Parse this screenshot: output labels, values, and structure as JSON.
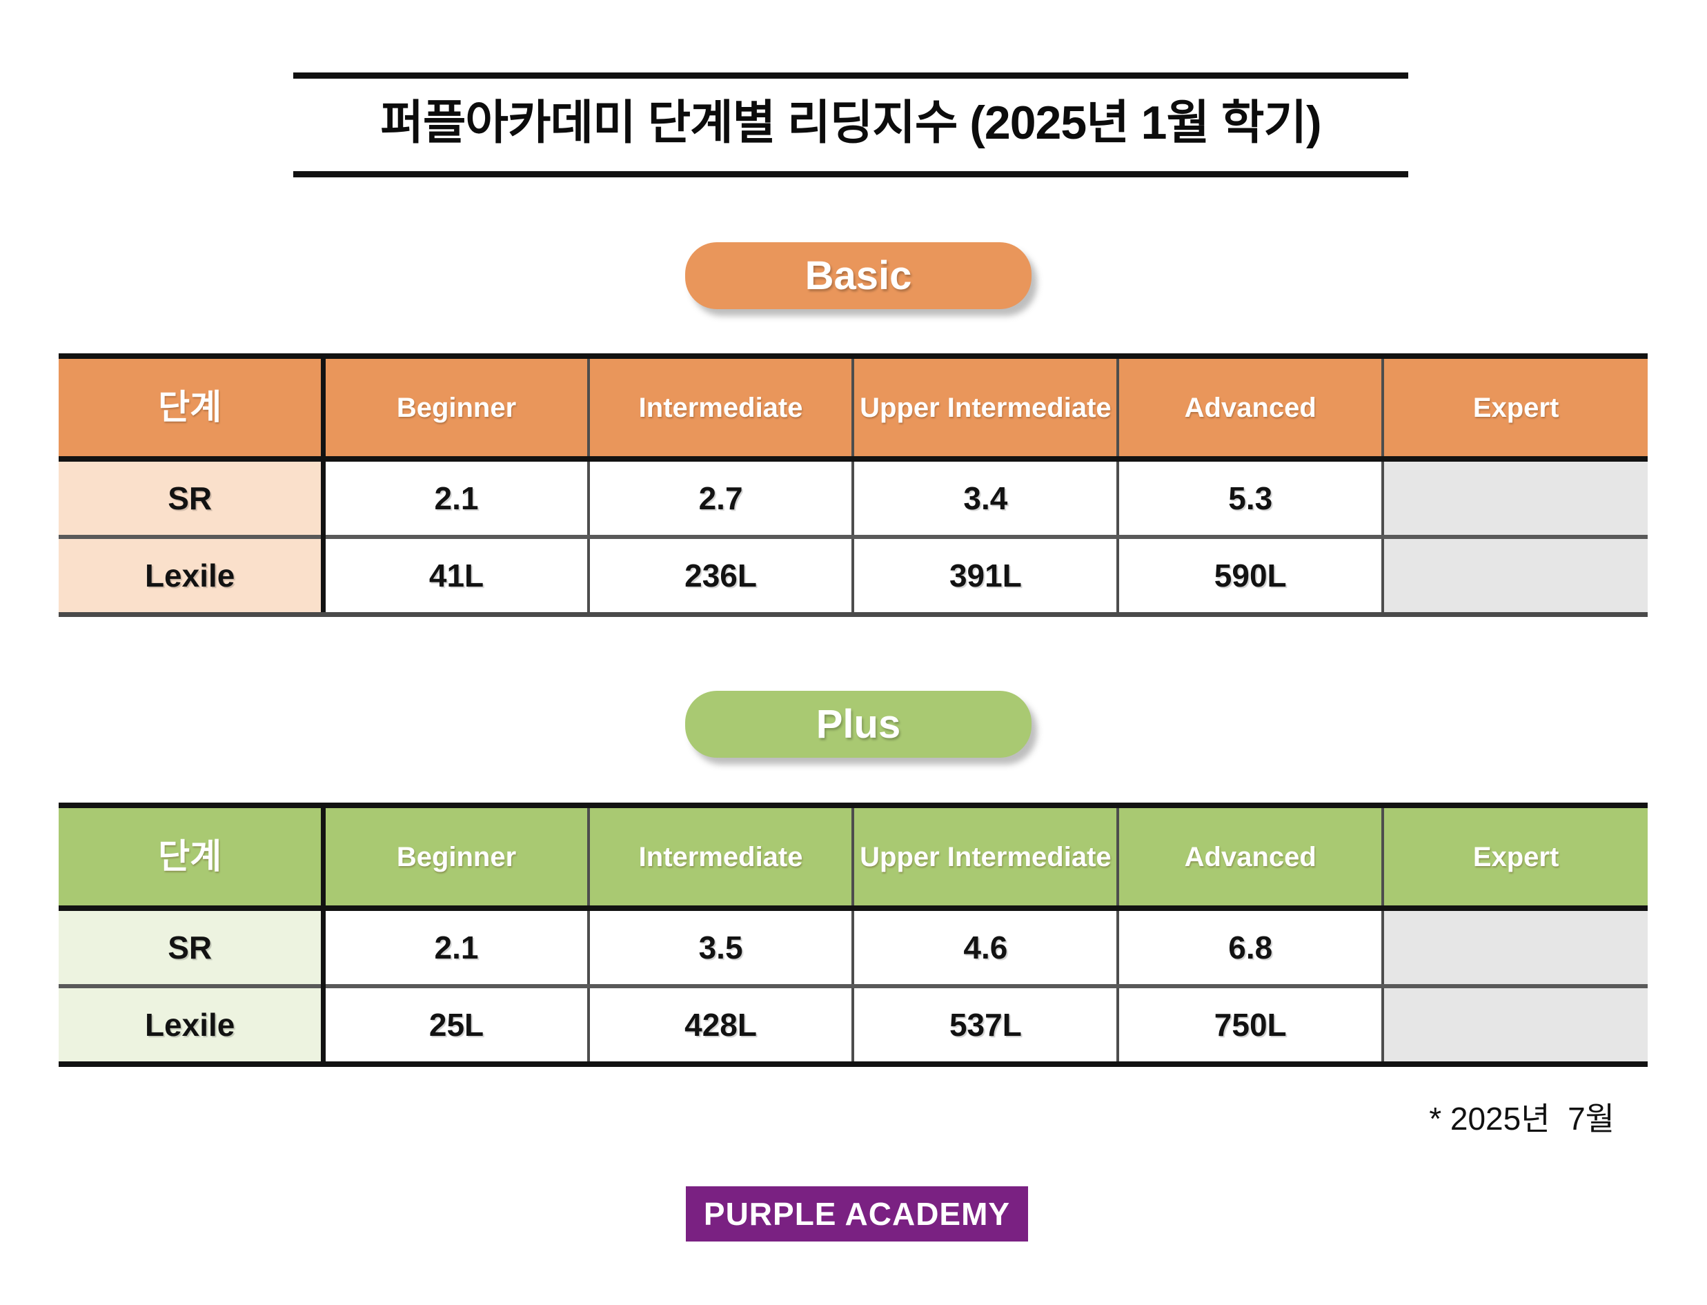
{
  "title": {
    "text": "퍼플아카데미 단계별 리딩지수 (2025년 1월 학기)"
  },
  "sections": [
    {
      "badge": "Basic",
      "accent_color": "#E9965B",
      "label_bg_color": "#FAE0CB",
      "header": [
        "단계",
        "Beginner",
        "Intermediate",
        "Upper Intermediate",
        "Advanced",
        "Expert"
      ],
      "rows": [
        {
          "label": "SR",
          "values": [
            "2.1",
            "2.7",
            "3.4",
            "5.3",
            ""
          ]
        },
        {
          "label": "Lexile",
          "values": [
            "41L",
            "236L",
            "391L",
            "590L",
            ""
          ]
        }
      ]
    },
    {
      "badge": "Plus",
      "accent_color": "#A9C972",
      "label_bg_color": "#EDF3E0",
      "header": [
        "단계",
        "Beginner",
        "Intermediate",
        "Upper Intermediate",
        "Advanced",
        "Expert"
      ],
      "rows": [
        {
          "label": "SR",
          "values": [
            "2.1",
            "3.5",
            "4.6",
            "6.8",
            ""
          ]
        },
        {
          "label": "Lexile",
          "values": [
            "25L",
            "428L",
            "537L",
            "750L",
            ""
          ]
        }
      ]
    }
  ],
  "footnote": "* 2025년  7월",
  "logo": "PURPLE ACADEMY",
  "colors": {
    "expert_cell_gray": "#E6E6E6",
    "logo_purple": "#7A2182",
    "title_bar_black": "#111111",
    "row_label_text": "#121212"
  }
}
